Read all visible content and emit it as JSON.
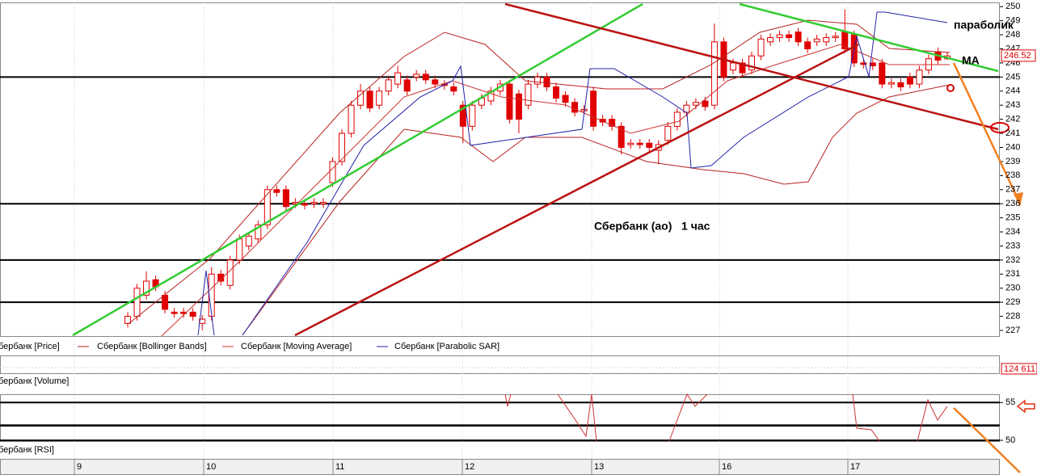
{
  "chart_data": {
    "type": "candlestick",
    "annotations": {
      "sar_label": "параболик",
      "ma_label": "MA",
      "caption": "Сбербанк (ао)   1 час"
    },
    "legend": [
      "бербанк [Price]",
      "Сбербанк [Bollinger Bands]",
      "Сбербанк [Moving Average]",
      "Сбербанк [Parabolic SAR]"
    ],
    "panel_labels": {
      "volume": "бербанк [Volume]",
      "rsi": "бербанк [RSI]"
    },
    "x_labels": [
      "9",
      "10",
      "11",
      "12",
      "13",
      "16",
      "17"
    ],
    "color": "#e00000",
    "ylim": [
      226.6,
      250.3
    ],
    "yticks": [
      227,
      228,
      229,
      230,
      231,
      232,
      233,
      234,
      235,
      236,
      237,
      238,
      239,
      240,
      241,
      242,
      243,
      244,
      245,
      246,
      247,
      248,
      249,
      250
    ],
    "levels": [
      245,
      236,
      232,
      229
    ],
    "last_price": 246.52,
    "volume_last": {
      "value": 124611,
      "label": "124 611"
    },
    "rsi_ylim": [
      49.9,
      56.1
    ],
    "rsi_yticks": [
      55,
      50
    ],
    "rsi_levels": [
      55,
      52,
      50
    ],
    "open": [
      227.5,
      228,
      229.5,
      230.6,
      229.5,
      228.3,
      228.3,
      228.3,
      227.5,
      228,
      231,
      230.2,
      232,
      233,
      233.5,
      234.5,
      237,
      237,
      236,
      236,
      236,
      236,
      237.5,
      239,
      241,
      243,
      244,
      243,
      244,
      244.5,
      244.8,
      245,
      245.2,
      244.8,
      244.5,
      244.3,
      243,
      241.5,
      243,
      243.3,
      244,
      244.5,
      243.8,
      243,
      244.5,
      245,
      244.3,
      243.7,
      243.2,
      242.6,
      244,
      242,
      242,
      241.5,
      240.2,
      240.3,
      240.3,
      239.8,
      240.5,
      241.5,
      242.5,
      243,
      243.3,
      243,
      247.5,
      245.5,
      246,
      245.5,
      246.5,
      247.5,
      247.8,
      248,
      248.2,
      247.5,
      247.5,
      247.5,
      247.8,
      248.2,
      248,
      246,
      246,
      246,
      244.5,
      244.6,
      245,
      244.5,
      245.5,
      246.8,
      246.3
    ],
    "high": [
      228.3,
      230.3,
      231.2,
      230.9,
      229.8,
      228.6,
      228.6,
      228.6,
      228.1,
      231.5,
      231.3,
      232.3,
      233.8,
      234,
      234.8,
      237.3,
      237.3,
      237.3,
      236.4,
      236.3,
      236.4,
      236.4,
      239.3,
      241.3,
      243.3,
      244.5,
      244.3,
      244.3,
      245.1,
      245.8,
      245.1,
      245.5,
      245.5,
      245.1,
      244.8,
      244.6,
      243.3,
      243.3,
      243.8,
      244.3,
      244.8,
      244.8,
      244.1,
      244.8,
      245.3,
      245.3,
      244.6,
      244,
      243.5,
      243,
      244.3,
      242.3,
      242.3,
      241.8,
      240.6,
      240.6,
      240.6,
      240.5,
      241.8,
      242.8,
      243.3,
      243.5,
      243.6,
      248.8,
      247.8,
      246.3,
      246.3,
      246.8,
      248,
      248.1,
      248.3,
      248.3,
      248.5,
      247.8,
      248,
      248.1,
      248.2,
      249.8,
      248.3,
      246.3,
      246.3,
      246.3,
      244.9,
      244.9,
      245.3,
      245.8,
      246.6,
      247.1,
      246.8
    ],
    "low": [
      227.2,
      227.7,
      229.2,
      229.8,
      228.2,
      227.9,
      227.9,
      227.7,
      227,
      227.7,
      230.2,
      229.9,
      231.7,
      232.7,
      233.2,
      234.2,
      236.5,
      235.5,
      235.7,
      235.6,
      235.7,
      235.7,
      237.2,
      238.7,
      240.7,
      242.7,
      242.5,
      242.7,
      243.7,
      244.2,
      243.7,
      244.7,
      244.5,
      244.2,
      244.1,
      243.7,
      240.3,
      241.2,
      242.7,
      243,
      243.7,
      241.7,
      241,
      242.7,
      244.2,
      244,
      243.2,
      242.9,
      242.2,
      242.3,
      241.2,
      241.5,
      241.2,
      239.5,
      239.9,
      239.9,
      239.7,
      238.8,
      240.2,
      241.2,
      242.2,
      242.7,
      242.6,
      242.7,
      244.7,
      245.2,
      245,
      245.2,
      246.2,
      247.2,
      247.5,
      247.5,
      247.2,
      246.7,
      247.2,
      247.2,
      247.5,
      246.7,
      245.7,
      245.6,
      245.5,
      244.2,
      244.2,
      244,
      244.2,
      244.2,
      245.2,
      245.9,
      246.2
    ],
    "close": [
      228,
      230,
      230.5,
      230.1,
      228.5,
      228.2,
      228.2,
      228,
      227.8,
      231,
      230.5,
      232,
      233.5,
      233.7,
      234.5,
      237,
      236.8,
      235.8,
      236.1,
      235.9,
      236.1,
      236.1,
      239,
      241,
      243,
      244,
      242.8,
      244,
      244.8,
      245.3,
      244,
      245.2,
      244.8,
      244.5,
      244.4,
      244,
      241.5,
      243,
      243.5,
      244,
      244.5,
      242,
      242,
      244.5,
      245,
      244.3,
      243.5,
      243.2,
      242.5,
      242.7,
      241.5,
      241.8,
      241.5,
      240,
      240.3,
      240.2,
      240,
      240.2,
      241.5,
      242.5,
      243,
      243.2,
      242.9,
      247.5,
      245,
      246,
      245.3,
      246.5,
      247.7,
      247.8,
      248,
      247.8,
      247.5,
      247,
      247.7,
      247.8,
      247.9,
      247,
      246,
      245.9,
      245.8,
      244.5,
      244.6,
      244.3,
      244.5,
      245.5,
      246.3,
      246.2,
      246.5
    ]
  }
}
